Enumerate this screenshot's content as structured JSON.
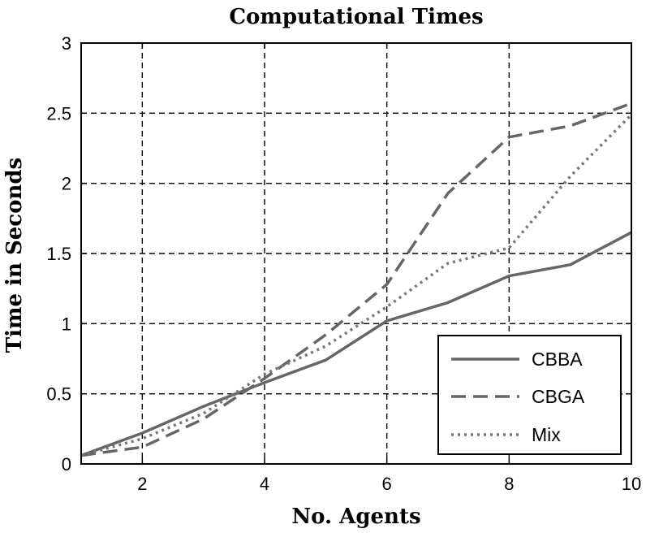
{
  "chart_data": {
    "type": "line",
    "title": "Computational Times",
    "xlabel": "No. Agents",
    "ylabel": "Time in Seconds",
    "xlim": [
      1,
      10
    ],
    "ylim": [
      0,
      3
    ],
    "xticks": [
      2,
      4,
      6,
      8,
      10
    ],
    "yticks": [
      0,
      0.5,
      1,
      1.5,
      2,
      2.5,
      3
    ],
    "ytick_labels": [
      "0",
      "0.5",
      "1",
      "1.5",
      "2",
      "2.5",
      "3"
    ],
    "grid": true,
    "legend_position": "bottom-right",
    "x": [
      1,
      2,
      3,
      4,
      5,
      6,
      7,
      8,
      9,
      10
    ],
    "series": [
      {
        "name": "CBBA",
        "style": "solid",
        "color": "#666666",
        "values": [
          0.06,
          0.22,
          0.41,
          0.58,
          0.74,
          1.02,
          1.15,
          1.34,
          1.42,
          1.65
        ]
      },
      {
        "name": "CBGA",
        "style": "dashed",
        "color": "#666666",
        "values": [
          0.06,
          0.12,
          0.32,
          0.61,
          0.92,
          1.28,
          1.93,
          2.33,
          2.41,
          2.57
        ]
      },
      {
        "name": "Mix",
        "style": "dotted",
        "color": "#777777",
        "values": [
          0.06,
          0.18,
          0.36,
          0.64,
          0.84,
          1.12,
          1.43,
          1.54,
          2.05,
          2.49
        ]
      }
    ]
  }
}
